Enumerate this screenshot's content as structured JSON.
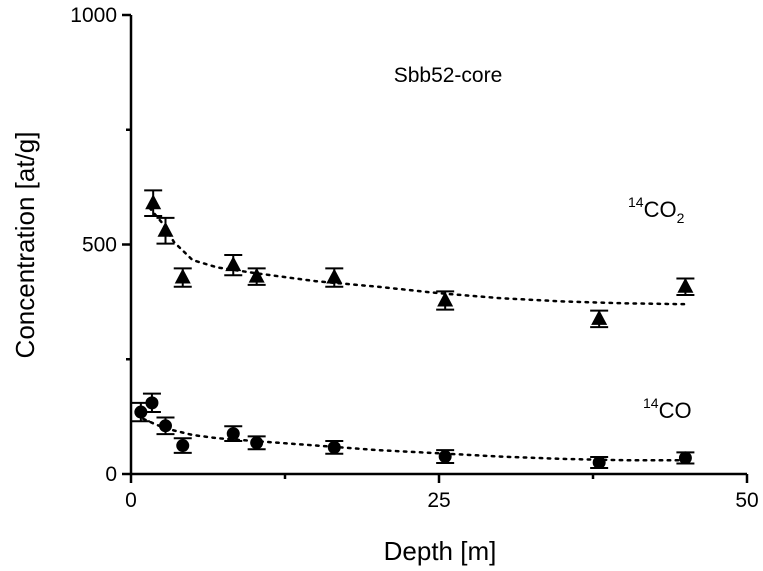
{
  "chart_data": {
    "type": "scatter",
    "title": "",
    "annotation": "Sbb52-core",
    "xlabel": "Depth [m]",
    "ylabel": "Concentration [at/g]",
    "xlim": [
      0,
      50
    ],
    "ylim": [
      0,
      1000
    ],
    "x_ticks": [
      "0",
      "25",
      "50"
    ],
    "y_ticks": [
      "0",
      "500",
      "1000"
    ],
    "grid": false,
    "series": [
      {
        "name_parts": {
          "sup": "14",
          "base": "CO",
          "sub": "2"
        },
        "marker": "triangle",
        "color": "#000000",
        "points": [
          {
            "x": 1.8,
            "y": 590,
            "err": 28
          },
          {
            "x": 2.8,
            "y": 530,
            "err": 28
          },
          {
            "x": 4.2,
            "y": 428,
            "err": 20
          },
          {
            "x": 8.3,
            "y": 455,
            "err": 22
          },
          {
            "x": 10.2,
            "y": 430,
            "err": 18
          },
          {
            "x": 16.5,
            "y": 428,
            "err": 20
          },
          {
            "x": 25.5,
            "y": 378,
            "err": 20
          },
          {
            "x": 38.0,
            "y": 338,
            "err": 18
          },
          {
            "x": 45.0,
            "y": 408,
            "err": 18
          }
        ],
        "fit": {
          "x": [
            1.5,
            2.5,
            3.5,
            5,
            7,
            10,
            15,
            20,
            25,
            30,
            35,
            40,
            45
          ],
          "y": [
            580,
            548,
            505,
            466,
            450,
            438,
            420,
            408,
            394,
            383,
            376,
            372,
            370
          ]
        }
      },
      {
        "name_parts": {
          "sup": "14",
          "base": "CO",
          "sub": ""
        },
        "marker": "circle",
        "color": "#000000",
        "points": [
          {
            "x": 0.8,
            "y": 135,
            "err": 20
          },
          {
            "x": 1.7,
            "y": 155,
            "err": 20
          },
          {
            "x": 2.8,
            "y": 105,
            "err": 18
          },
          {
            "x": 4.2,
            "y": 62,
            "err": 16
          },
          {
            "x": 8.3,
            "y": 88,
            "err": 16
          },
          {
            "x": 10.2,
            "y": 68,
            "err": 14
          },
          {
            "x": 16.5,
            "y": 58,
            "err": 14
          },
          {
            "x": 25.5,
            "y": 38,
            "err": 14
          },
          {
            "x": 38.0,
            "y": 25,
            "err": 12
          },
          {
            "x": 45.0,
            "y": 35,
            "err": 12
          }
        ],
        "fit": {
          "x": [
            1,
            2,
            3,
            5,
            7,
            10,
            15,
            20,
            25,
            30,
            35,
            40,
            45
          ],
          "y": [
            120,
            108,
            98,
            85,
            78,
            72,
            62,
            52,
            45,
            38,
            33,
            30,
            30
          ]
        }
      }
    ]
  }
}
